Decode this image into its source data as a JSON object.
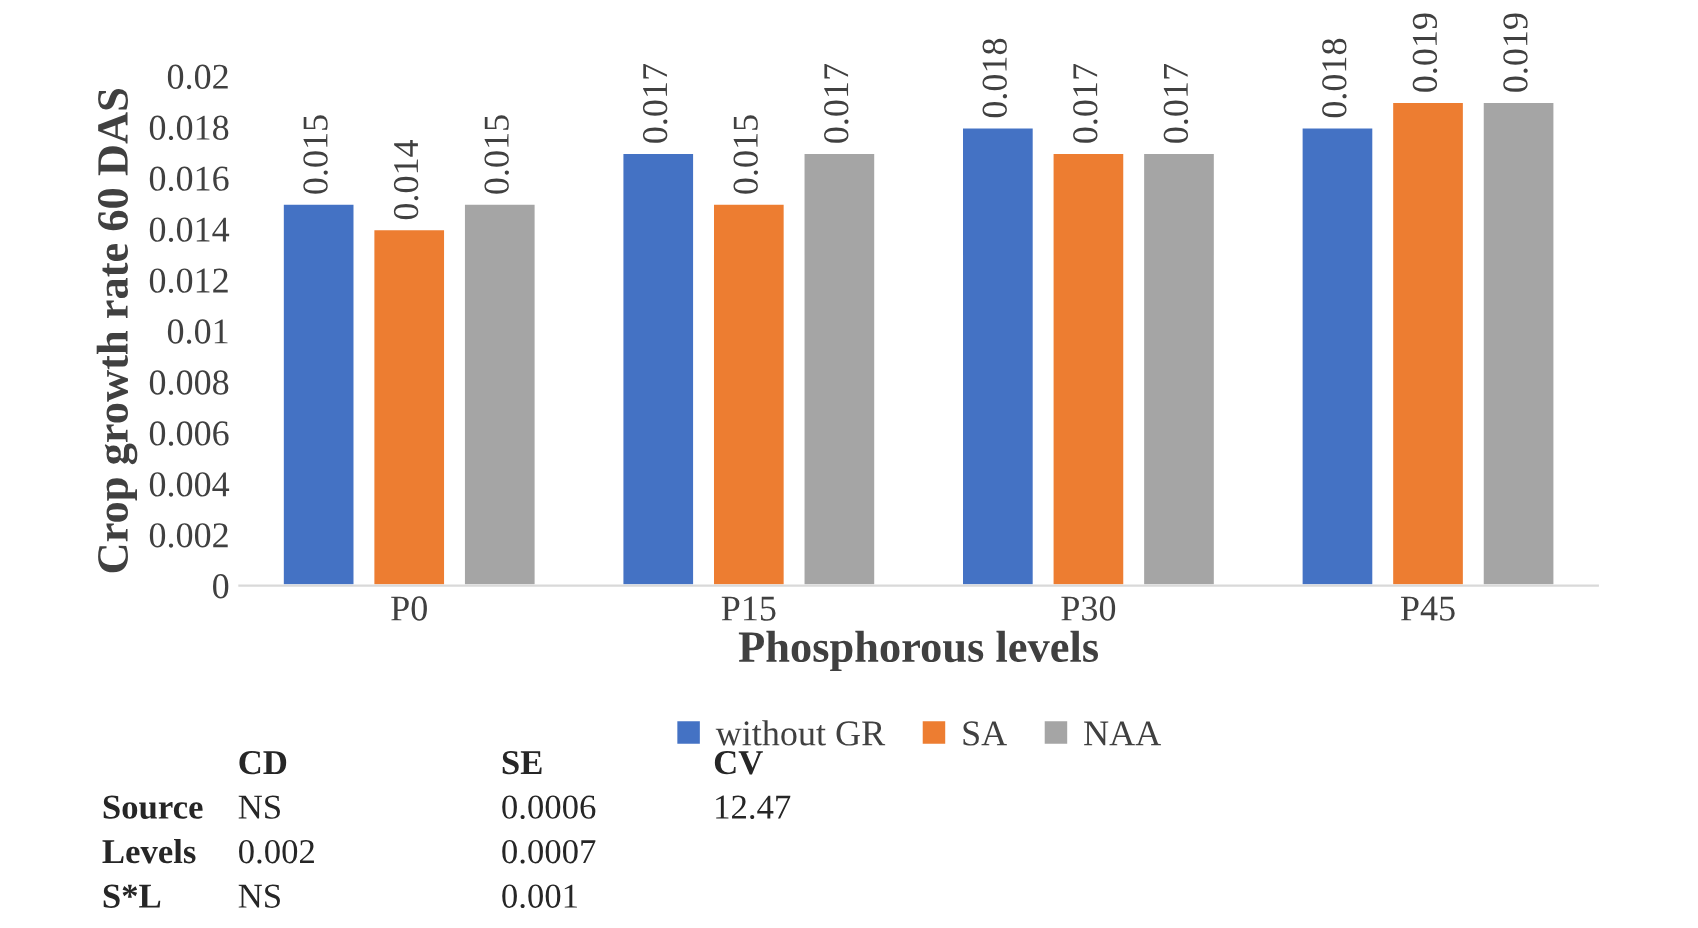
{
  "chart_data": {
    "type": "bar",
    "xlabel": "Phosphorous levels",
    "ylabel": "Crop growth rate 60 DAS",
    "categories": [
      "P0",
      "P15",
      "P30",
      "P45"
    ],
    "series": [
      {
        "name": "without GR",
        "color": "#4472c4",
        "values": [
          0.015,
          0.017,
          0.018,
          0.018
        ]
      },
      {
        "name": "SA",
        "color": "#ed7d31",
        "values": [
          0.014,
          0.015,
          0.017,
          0.019
        ]
      },
      {
        "name": "NAA",
        "color": "#a5a5a5",
        "values": [
          0.015,
          0.017,
          0.017,
          0.019
        ]
      }
    ],
    "ylim": [
      0,
      0.02
    ],
    "yticks": [
      0,
      {
        "value": 0.002,
        "label": "0.002"
      },
      {
        "value": 0.004,
        "label": "0.004"
      },
      {
        "value": 0.006,
        "label": "0.006"
      },
      {
        "value": 0.008,
        "label": "0.008"
      },
      {
        "value": 0.01,
        "label": "0.01"
      },
      {
        "value": 0.012,
        "label": "0.012"
      },
      {
        "value": 0.014,
        "label": "0.014"
      },
      {
        "value": 0.016,
        "label": "0.016"
      },
      {
        "value": 0.018,
        "label": "0.018"
      },
      {
        "value": 0.02,
        "label": "0.02"
      }
    ],
    "data_labels": true,
    "legend": "bottom",
    "grid": false,
    "annotations": [
      "\tCD\tSE\tCV",
      "Source\tNS\t0.0006\t12.47",
      "Levels\t0.002\t0.0007",
      "S*L\tNS\t0.001"
    ]
  }
}
